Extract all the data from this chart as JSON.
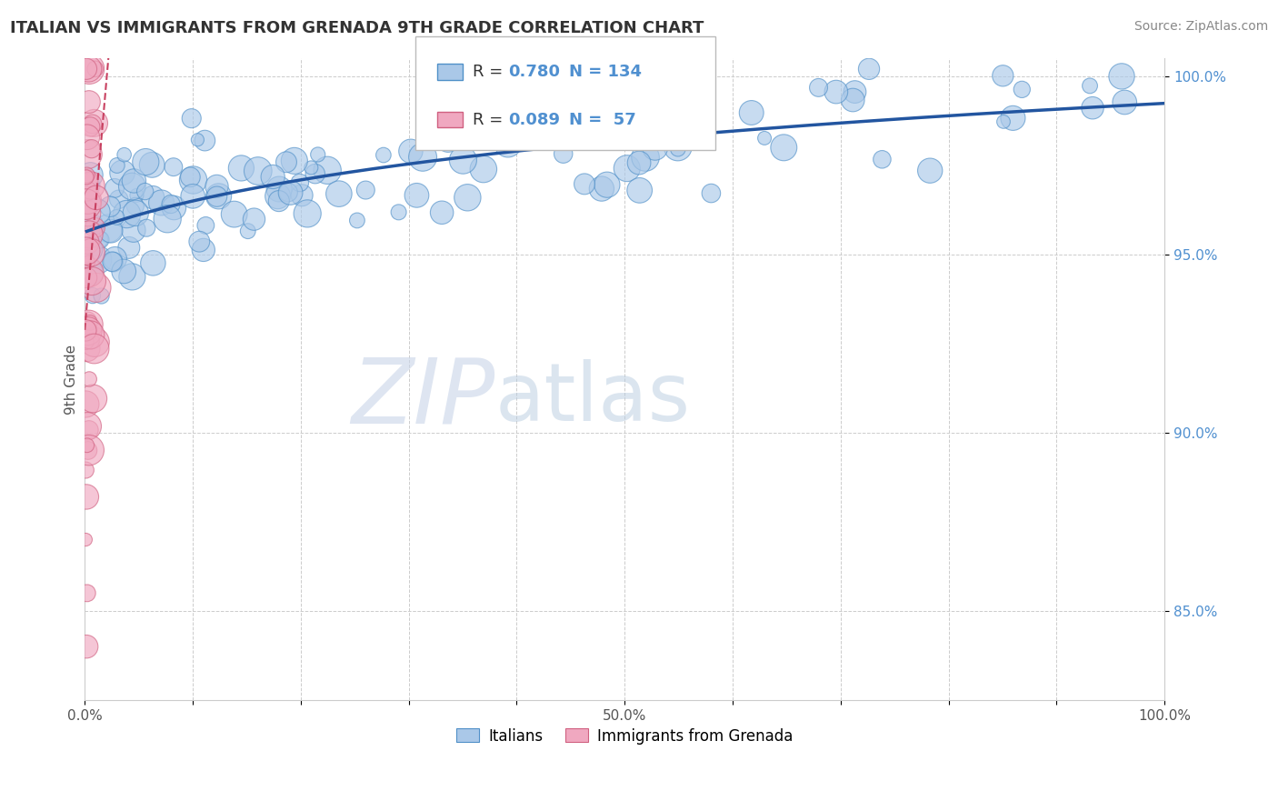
{
  "title": "ITALIAN VS IMMIGRANTS FROM GRENADA 9TH GRADE CORRELATION CHART",
  "source_text": "Source: ZipAtlas.com",
  "ylabel": "9th Grade",
  "watermark_zip": "ZIP",
  "watermark_atlas": "atlas",
  "xlim": [
    0.0,
    1.0
  ],
  "ylim": [
    0.825,
    1.005
  ],
  "xtick_vals": [
    0.0,
    0.1,
    0.2,
    0.3,
    0.4,
    0.5,
    0.6,
    0.7,
    0.8,
    0.9,
    1.0
  ],
  "xtick_labels": [
    "0.0%",
    "",
    "",
    "",
    "",
    "50.0%",
    "",
    "",
    "",
    "",
    "100.0%"
  ],
  "ytick_vals": [
    0.85,
    0.9,
    0.95,
    1.0
  ],
  "ytick_labels": [
    "85.0%",
    "90.0%",
    "95.0%",
    "100.0%"
  ],
  "italian_color": "#aac8e8",
  "italian_edge_color": "#5090c8",
  "grenada_color": "#f0a8c0",
  "grenada_edge_color": "#d06080",
  "italian_line_color": "#2255a0",
  "grenada_line_color": "#c84060",
  "grid_color": "#cccccc",
  "title_color": "#333333",
  "source_color": "#888888",
  "yaxis_color": "#5090d0",
  "legend_text_color": "#333333",
  "legend_value_color": "#5090d0",
  "background_color": "#ffffff",
  "watermark_zip_color": "#c8d8ec",
  "watermark_atlas_color": "#c8daea",
  "seed": 77
}
